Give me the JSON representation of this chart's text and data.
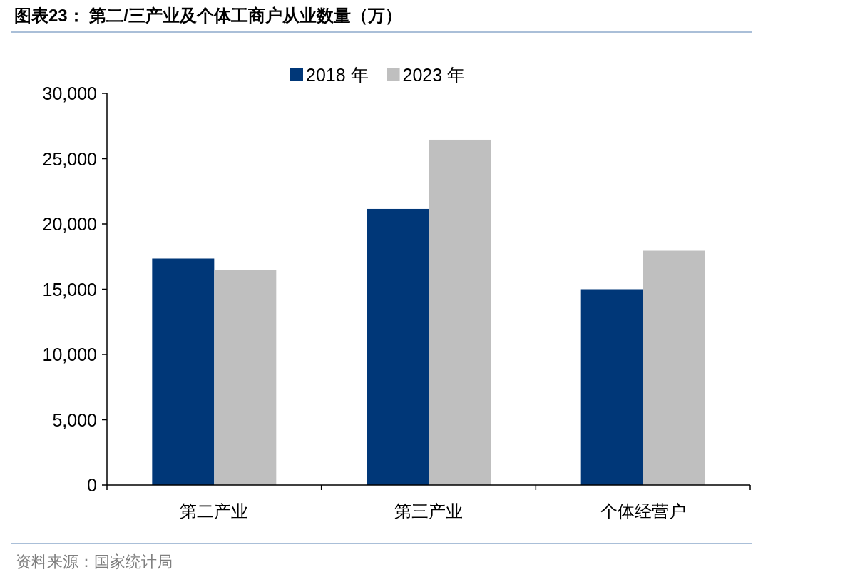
{
  "chart_data": {
    "type": "bar",
    "title": "图表23：  第二/三产业及个体工商户从业数量（万）",
    "categories": [
      "第二产业",
      "第三产业",
      "个体经营户"
    ],
    "series": [
      {
        "name": "2018 年",
        "color": "#003778",
        "values": [
          17350,
          21150,
          15000
        ]
      },
      {
        "name": "2023 年",
        "color": "#bfbfbf",
        "values": [
          16450,
          26450,
          17950
        ]
      }
    ],
    "ylim": [
      0,
      30000
    ],
    "yticks": [
      {
        "value": 0,
        "label": "0"
      },
      {
        "value": 5000,
        "label": "5,000"
      },
      {
        "value": 10000,
        "label": "10,000"
      },
      {
        "value": 15000,
        "label": "15,000"
      },
      {
        "value": 20000,
        "label": "20,000"
      },
      {
        "value": 25000,
        "label": "25,000"
      },
      {
        "value": 30000,
        "label": "30,000"
      }
    ],
    "legend": "top",
    "grid": false,
    "annotations": [
      "资料来源：国家统计局"
    ]
  }
}
